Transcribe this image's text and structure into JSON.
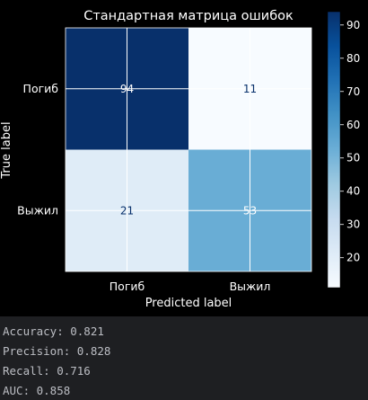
{
  "chart_data": {
    "type": "heatmap",
    "title": "Стандартная матрица ошибок",
    "xlabel": "Predicted label",
    "ylabel": "True label",
    "x_categories": [
      "Погиб",
      "Выжил"
    ],
    "y_categories": [
      "Погиб",
      "Выжил"
    ],
    "values": [
      [
        94,
        11
      ],
      [
        21,
        53
      ]
    ],
    "colormap": "Blues",
    "colorbar": {
      "ticks": [
        20,
        30,
        40,
        50,
        60,
        70,
        80,
        90
      ],
      "range": [
        11,
        94
      ]
    },
    "grid": true
  },
  "console": {
    "lines": [
      "Accuracy: 0.821",
      "Precision: 0.828",
      "Recall: 0.716",
      "AUC: 0.858"
    ]
  },
  "colors": {
    "figure_bg": "#000000",
    "console_bg": "#1e1f22",
    "console_text": "#bcbec4",
    "cell_text_dark": "#08306b",
    "cell_text_light": "#ffffff"
  }
}
